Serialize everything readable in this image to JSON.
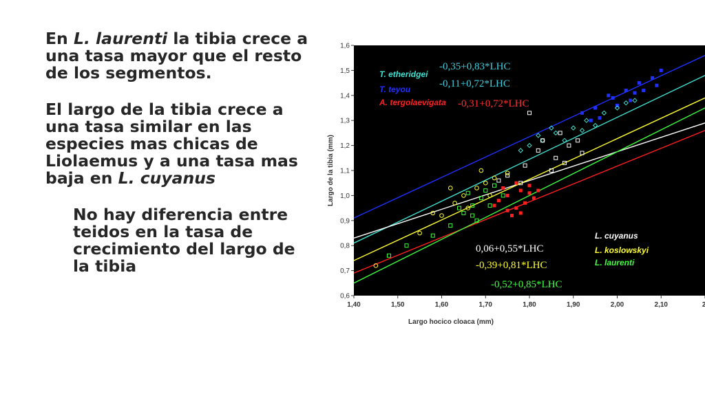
{
  "text": {
    "p1": {
      "a": "En ",
      "b": "L. laurenti",
      "c": " la tibia crece a una tasa mayor que el resto de los segmentos."
    },
    "p2": {
      "a": "El largo de la tibia crece a una tasa similar en las especies mas chicas de Liolaemus y a una tasa mas baja en ",
      "b": "L. cuyanus"
    },
    "p3": "No hay diferencia entre teidos en la tasa de crecimiento del largo de la tibia"
  },
  "chart_data": {
    "type": "scatter",
    "xlabel": "Largo hocico cloaca (mm)",
    "ylabel": "Largo de la tibia (mm)",
    "xlim": [
      1.4,
      2.2
    ],
    "ylim": [
      0.6,
      1.6
    ],
    "x_ticks": [
      "1,40",
      "1,50",
      "1,60",
      "1,70",
      "1,80",
      "1,90",
      "2,00",
      "2,10",
      "2,"
    ],
    "y_ticks": [
      "0,6",
      "0,7",
      "0,8",
      "0,9",
      "1,0",
      "1,1",
      "1,2",
      "1,3",
      "1,4",
      "1,5",
      "1,6"
    ],
    "legend_left": [
      {
        "name": "T. etheridgei",
        "color": "#40e0d0"
      },
      {
        "name": "T. teyou",
        "color": "#2030ff"
      },
      {
        "name": "A. tergolaevigata",
        "color": "#ff2020"
      }
    ],
    "legend_right": [
      {
        "name": "L. cuyanus",
        "color": "#ffffff"
      },
      {
        "name": "L. koslowskyi",
        "color": "#ffff30"
      },
      {
        "name": "L. laurenti",
        "color": "#40ff40"
      }
    ],
    "equations": [
      {
        "text": "-0,35+0,83*LHC",
        "color": "#40d0e0"
      },
      {
        "text": "-0,11+0,72*LHC",
        "color": "#40d0e0"
      },
      {
        "text": "-0,31+0,72*LHC",
        "color": "#ff3030"
      },
      {
        "text": "0,06+0,55*LHC",
        "color": "#ffffff"
      },
      {
        "text": "-0,39+0,81*LHC",
        "color": "#ffff30"
      },
      {
        "text": "-0,52+0,85*LHC",
        "color": "#40ff40"
      }
    ],
    "series": [
      {
        "name": "T. teyou",
        "color": "#2030ff",
        "marker": "square-filled",
        "line": {
          "x": [
            1.4,
            2.2
          ],
          "y": [
            0.91,
            1.56
          ]
        },
        "points": [
          [
            1.92,
            1.33
          ],
          [
            1.95,
            1.35
          ],
          [
            1.98,
            1.4
          ],
          [
            2.02,
            1.42
          ],
          [
            2.05,
            1.45
          ],
          [
            2.08,
            1.47
          ],
          [
            2.1,
            1.5
          ],
          [
            2.03,
            1.38
          ],
          [
            1.96,
            1.31
          ],
          [
            2.0,
            1.36
          ],
          [
            2.06,
            1.42
          ],
          [
            2.09,
            1.44
          ],
          [
            1.99,
            1.39
          ],
          [
            2.04,
            1.41
          ],
          [
            1.94,
            1.3
          ]
        ]
      },
      {
        "name": "T. etheridgei",
        "color": "#40e0d0",
        "marker": "diamond",
        "line": {
          "x": [
            1.4,
            2.2
          ],
          "y": [
            0.81,
            1.48
          ]
        },
        "points": [
          [
            1.8,
            1.2
          ],
          [
            1.83,
            1.22
          ],
          [
            1.86,
            1.25
          ],
          [
            1.9,
            1.27
          ],
          [
            1.93,
            1.3
          ],
          [
            1.97,
            1.33
          ],
          [
            2.0,
            1.35
          ],
          [
            2.04,
            1.38
          ],
          [
            1.88,
            1.22
          ],
          [
            1.92,
            1.26
          ],
          [
            1.85,
            1.27
          ],
          [
            1.95,
            1.28
          ],
          [
            2.02,
            1.37
          ],
          [
            1.78,
            1.18
          ],
          [
            1.82,
            1.24
          ]
        ]
      },
      {
        "name": "A. tergolaevigata",
        "color": "#ff2020",
        "marker": "square-filled",
        "line": {
          "x": [
            1.4,
            2.2
          ],
          "y": [
            0.69,
            1.26
          ]
        },
        "points": [
          [
            1.73,
            0.98
          ],
          [
            1.75,
            1.0
          ],
          [
            1.77,
            0.95
          ],
          [
            1.78,
            1.02
          ],
          [
            1.8,
            1.04
          ],
          [
            1.76,
            0.92
          ],
          [
            1.79,
            0.97
          ],
          [
            1.74,
            1.03
          ],
          [
            1.81,
            0.99
          ],
          [
            1.77,
            1.05
          ],
          [
            1.72,
            0.96
          ],
          [
            1.78,
            0.93
          ],
          [
            1.8,
            1.01
          ],
          [
            1.75,
            0.94
          ],
          [
            1.82,
            1.02
          ]
        ]
      },
      {
        "name": "L. cuyanus",
        "color": "#ffffff",
        "marker": "square-open",
        "line": {
          "x": [
            1.4,
            2.2
          ],
          "y": [
            0.83,
            1.29
          ]
        },
        "points": [
          [
            1.8,
            1.33
          ],
          [
            1.83,
            1.22
          ],
          [
            1.86,
            1.15
          ],
          [
            1.89,
            1.2
          ],
          [
            1.92,
            1.17
          ],
          [
            1.78,
            1.05
          ],
          [
            1.75,
            1.08
          ],
          [
            1.85,
            1.1
          ],
          [
            1.88,
            1.13
          ],
          [
            1.82,
            1.18
          ],
          [
            1.79,
            1.12
          ],
          [
            1.91,
            1.22
          ],
          [
            1.73,
            1.06
          ],
          [
            1.87,
            1.25
          ]
        ]
      },
      {
        "name": "L. koslowskyi",
        "color": "#ffff30",
        "marker": "circle-open",
        "line": {
          "x": [
            1.4,
            2.2
          ],
          "y": [
            0.74,
            1.39
          ]
        },
        "points": [
          [
            1.45,
            0.72
          ],
          [
            1.55,
            0.85
          ],
          [
            1.6,
            0.92
          ],
          [
            1.63,
            0.97
          ],
          [
            1.65,
            1.0
          ],
          [
            1.68,
            1.03
          ],
          [
            1.7,
            1.05
          ],
          [
            1.72,
            1.07
          ],
          [
            1.75,
            1.09
          ],
          [
            1.66,
            0.95
          ],
          [
            1.62,
            1.03
          ],
          [
            1.69,
            1.1
          ],
          [
            1.71,
            1.0
          ],
          [
            1.58,
            0.93
          ]
        ]
      },
      {
        "name": "L. laurenti",
        "color": "#40ff40",
        "marker": "square-open",
        "line": {
          "x": [
            1.4,
            2.2
          ],
          "y": [
            0.65,
            1.35
          ]
        },
        "points": [
          [
            1.48,
            0.76
          ],
          [
            1.52,
            0.8
          ],
          [
            1.58,
            0.84
          ],
          [
            1.62,
            0.88
          ],
          [
            1.65,
            0.93
          ],
          [
            1.67,
            0.96
          ],
          [
            1.69,
            0.99
          ],
          [
            1.7,
            1.02
          ],
          [
            1.72,
            1.04
          ],
          [
            1.66,
            1.01
          ],
          [
            1.64,
            0.95
          ],
          [
            1.68,
            0.9
          ],
          [
            1.71,
            0.96
          ],
          [
            1.74,
            1.0
          ],
          [
            1.67,
            0.92
          ]
        ]
      }
    ]
  }
}
